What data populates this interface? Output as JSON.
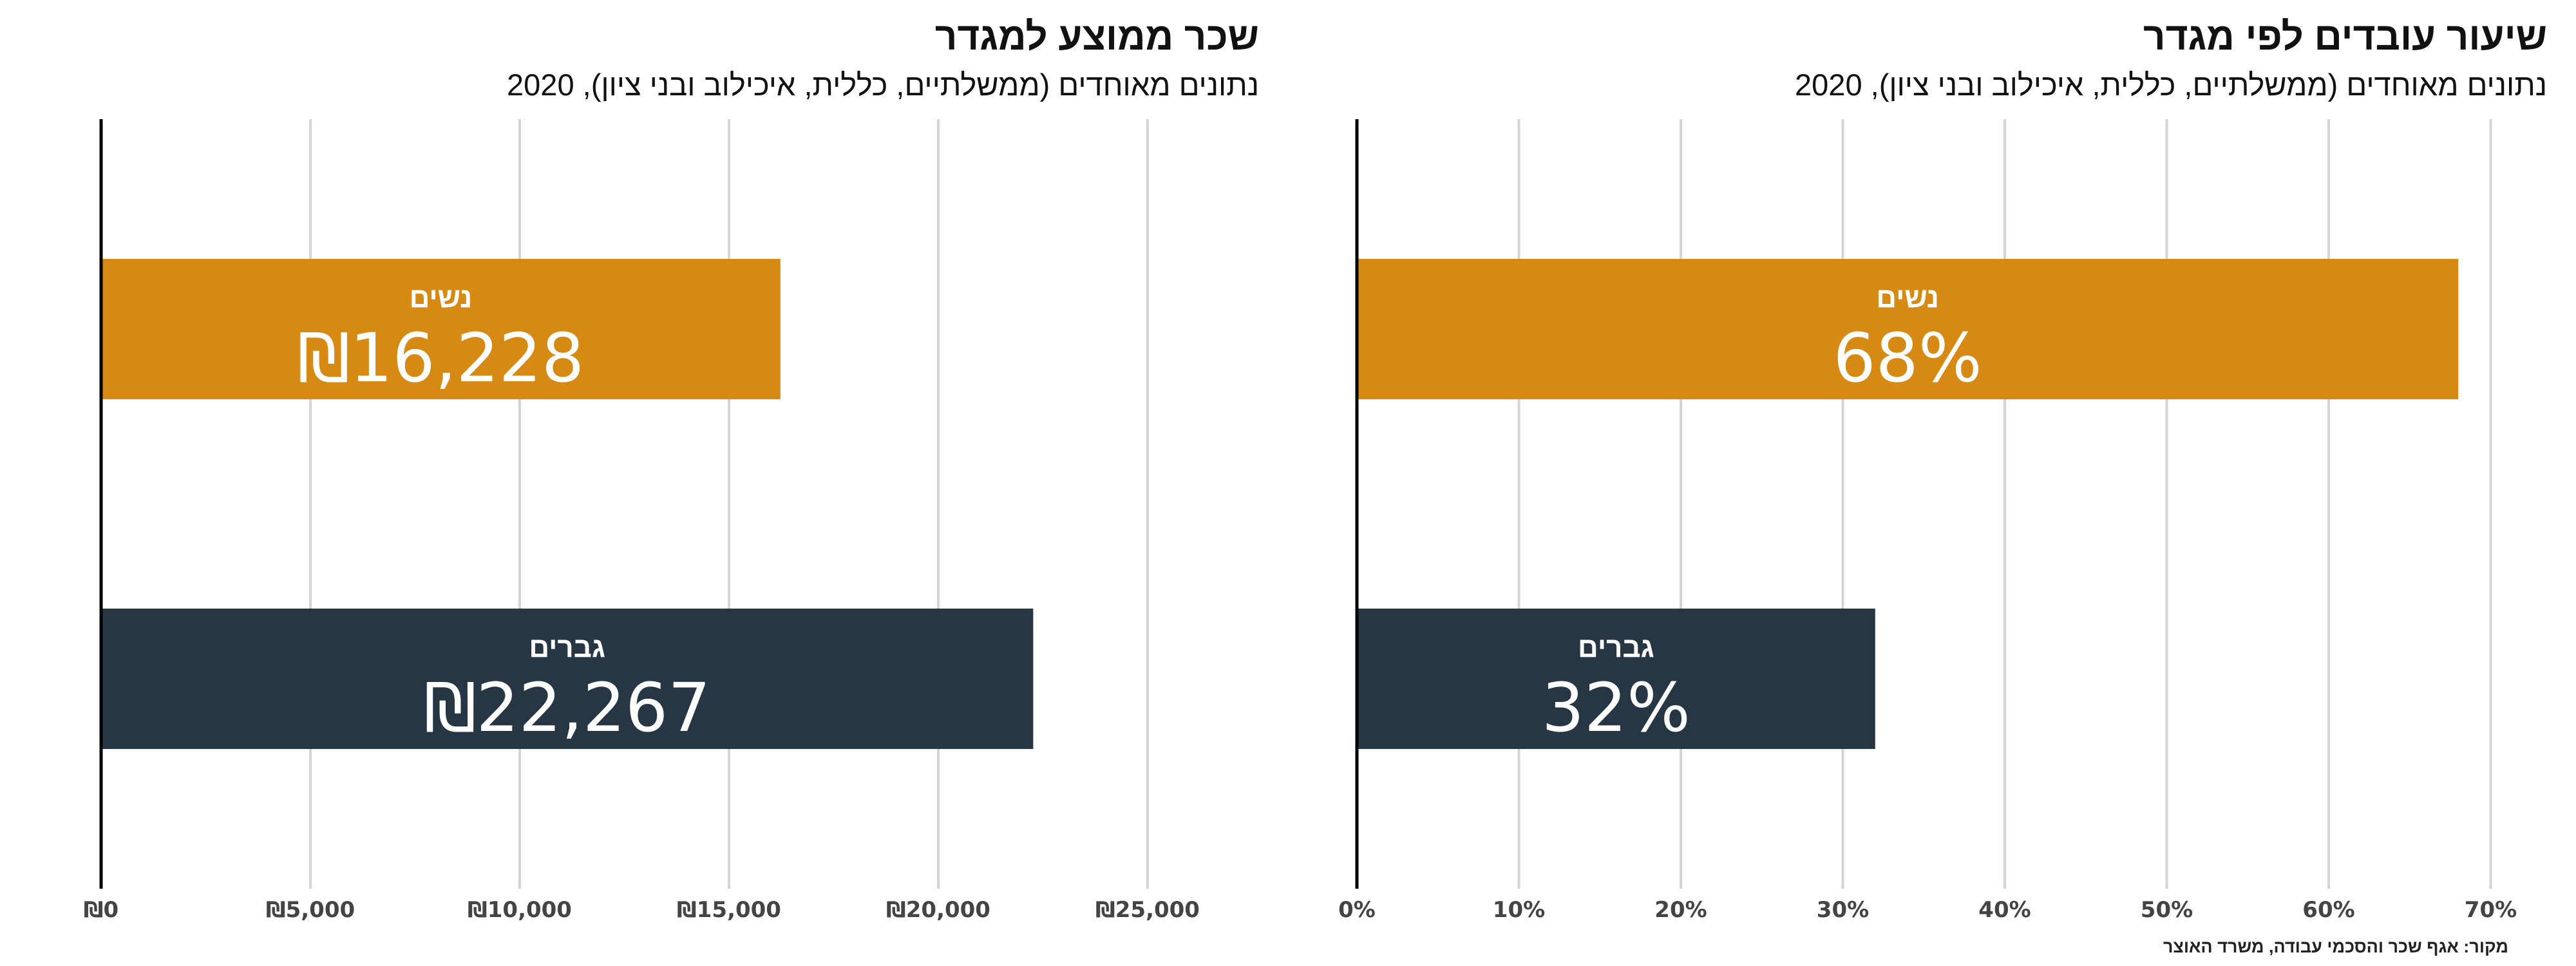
{
  "source": "מקור: אגף שכר והסכמי עבודה, משרד האוצר",
  "colors": {
    "women": "#d68a13",
    "men": "#263645",
    "grid": "#d4d4d4",
    "axis": "#000000"
  },
  "chart_data": [
    {
      "type": "bar",
      "orientation": "horizontal",
      "title": "שכר ממוצע למגדר",
      "subtitle": "נתונים מאוחדים (ממשלתיים, כללית, איכילוב ובני ציון), 2020",
      "categories": [
        "נשים",
        "גברים"
      ],
      "values": [
        16228,
        22267
      ],
      "value_labels": [
        "₪16,228",
        "₪22,267"
      ],
      "xlim": [
        0,
        27500
      ],
      "ticks": [
        0,
        5000,
        10000,
        15000,
        20000,
        25000
      ],
      "tick_labels": [
        "₪0",
        "₪5,000",
        "₪10,000",
        "₪15,000",
        "₪20,000",
        "₪25,000"
      ],
      "grid": true
    },
    {
      "type": "bar",
      "orientation": "horizontal",
      "title": "שיעור עובדים לפי מגדר",
      "subtitle": "נתונים מאוחדים (ממשלתיים, כללית, איכילוב ובני ציון), 2020",
      "categories": [
        "נשים",
        "גברים"
      ],
      "values": [
        68,
        32
      ],
      "value_labels": [
        "68%",
        "32%"
      ],
      "xlim": [
        0,
        72
      ],
      "ticks": [
        0,
        10,
        20,
        30,
        40,
        50,
        60,
        70
      ],
      "tick_labels": [
        "0%",
        "10%",
        "20%",
        "30%",
        "40%",
        "50%",
        "60%",
        "70%"
      ],
      "grid": true
    }
  ]
}
